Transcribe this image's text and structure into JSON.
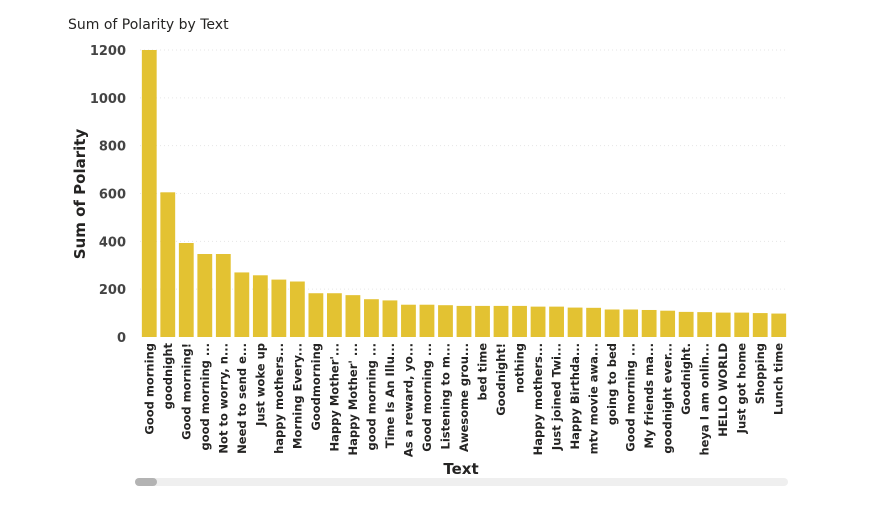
{
  "visual": {
    "title": "Sum of Polarity by Text"
  },
  "chart_data": {
    "type": "bar",
    "title": "Sum of Polarity by Text",
    "xlabel": "Text",
    "ylabel": "Sum of Polarity",
    "ylim": [
      0,
      1200
    ],
    "yticks": [
      0,
      200,
      400,
      600,
      800,
      1000,
      1200
    ],
    "grid": true,
    "bar_color": "#E3C232",
    "categories": [
      "Good morning",
      "goodnight",
      "Good morning!",
      "good morning ...",
      "Not to worry, n...",
      "Need to send e...",
      "Just woke up",
      "happy mothers...",
      "Morning Every...",
      "Goodmorning",
      "Happy Mother'...",
      "Happy Mother' ...",
      "good morning ...",
      "Time Is An Illu...",
      "As a reward, yo...",
      "Good morning ...",
      "Listening to m...",
      "Awesome grou...",
      "bed time",
      "Goodnight!",
      "nothing",
      "Happy mothers...",
      "Just joined Twi...",
      "Happy Birthda...",
      "mtv movie awa...",
      "going to bed",
      "Good morning ...",
      "My friends ma...",
      "goodnight ever...",
      "Goodnight.",
      "heya I am onlin...",
      "HELLO WORLD",
      "Just got home",
      "Shopping",
      "Lunch time"
    ],
    "values": [
      1200,
      605,
      393,
      347,
      347,
      270,
      258,
      240,
      232,
      183,
      183,
      175,
      158,
      153,
      135,
      135,
      133,
      130,
      130,
      130,
      130,
      127,
      127,
      123,
      122,
      115,
      115,
      113,
      110,
      105,
      104,
      102,
      102,
      100,
      98
    ]
  }
}
